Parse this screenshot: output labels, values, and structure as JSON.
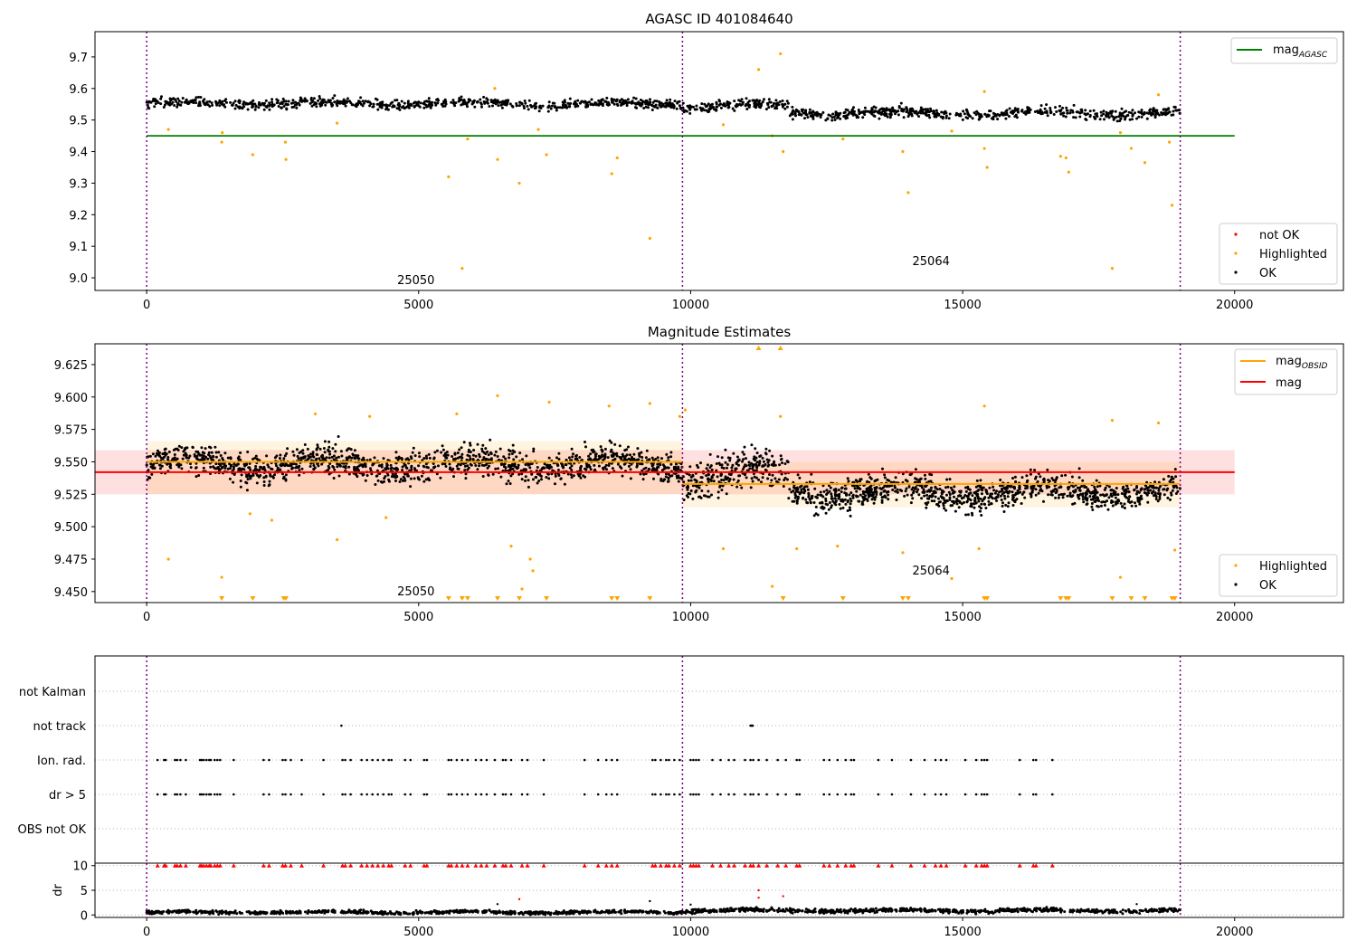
{
  "chart_data": [
    {
      "type": "scatter",
      "title": "AGASC ID 401084640",
      "xlim": [
        -950,
        22000
      ],
      "ylim": [
        8.96,
        9.78
      ],
      "xticks": [
        0,
        5000,
        10000,
        15000,
        20000
      ],
      "yticks": [
        9.0,
        9.1,
        9.2,
        9.3,
        9.4,
        9.5,
        9.6,
        9.7
      ],
      "obsid_boundaries": [
        0,
        9850,
        19000
      ],
      "obsid_labels": [
        {
          "text": "25050",
          "x": 4950,
          "y": 8.98
        },
        {
          "text": "25064",
          "x": 14420,
          "y": 9.04
        }
      ],
      "reference_lines": [
        {
          "name": "mag_AGASC",
          "color": "#008000",
          "x": [
            0,
            20000
          ],
          "y": 9.45
        }
      ],
      "ok_band": [
        {
          "x": [
            0,
            9850
          ],
          "center": 9.552,
          "spread": 0.018
        },
        {
          "x": [
            9850,
            11800
          ],
          "center": 9.545,
          "spread": 0.02
        },
        {
          "x": [
            11800,
            19000
          ],
          "center": 9.522,
          "spread": 0.02
        }
      ],
      "highlighted_points": [
        {
          "x": 1380,
          "y": 9.43
        },
        {
          "x": 1390,
          "y": 9.46
        },
        {
          "x": 1950,
          "y": 9.39
        },
        {
          "x": 2550,
          "y": 9.43
        },
        {
          "x": 2560,
          "y": 9.375
        },
        {
          "x": 5550,
          "y": 9.32
        },
        {
          "x": 5800,
          "y": 9.03
        },
        {
          "x": 5900,
          "y": 9.44
        },
        {
          "x": 6450,
          "y": 9.375
        },
        {
          "x": 6850,
          "y": 9.3
        },
        {
          "x": 7350,
          "y": 9.39
        },
        {
          "x": 8550,
          "y": 9.33
        },
        {
          "x": 8650,
          "y": 9.38
        },
        {
          "x": 9250,
          "y": 9.125
        },
        {
          "x": 11250,
          "y": 9.66
        },
        {
          "x": 11650,
          "y": 9.71
        },
        {
          "x": 11700,
          "y": 9.4
        },
        {
          "x": 12800,
          "y": 9.44
        },
        {
          "x": 13900,
          "y": 9.4
        },
        {
          "x": 14000,
          "y": 9.27
        },
        {
          "x": 15400,
          "y": 9.41
        },
        {
          "x": 15450,
          "y": 9.35
        },
        {
          "x": 15400,
          "y": 9.59
        },
        {
          "x": 16800,
          "y": 9.385
        },
        {
          "x": 16900,
          "y": 9.38
        },
        {
          "x": 16950,
          "y": 9.335
        },
        {
          "x": 17750,
          "y": 9.03
        },
        {
          "x": 18100,
          "y": 9.41
        },
        {
          "x": 18350,
          "y": 9.365
        },
        {
          "x": 18850,
          "y": 9.23
        },
        {
          "x": 18800,
          "y": 9.43
        },
        {
          "x": 18600,
          "y": 9.58
        },
        {
          "x": 400,
          "y": 9.47
        },
        {
          "x": 3500,
          "y": 9.49
        },
        {
          "x": 7200,
          "y": 9.47
        },
        {
          "x": 10600,
          "y": 9.485
        },
        {
          "x": 14800,
          "y": 9.465
        },
        {
          "x": 17900,
          "y": 9.46
        },
        {
          "x": 6400,
          "y": 9.6
        },
        {
          "x": 11500,
          "y": 9.45
        }
      ],
      "legends": [
        {
          "position": "upper-right",
          "entries": [
            {
              "label_main": "mag",
              "label_sub": "AGASC",
              "marker": "line",
              "color": "#008000"
            }
          ]
        },
        {
          "position": "lower-right",
          "entries": [
            {
              "label_main": "not OK",
              "label_sub": "",
              "marker": "dot",
              "color": "#ff0000"
            },
            {
              "label_main": "Highlighted",
              "label_sub": "",
              "marker": "dot",
              "color": "#ffa500"
            },
            {
              "label_main": "OK",
              "label_sub": "",
              "marker": "dot",
              "color": "#000000"
            }
          ]
        }
      ]
    },
    {
      "type": "scatter",
      "title": "Magnitude Estimates",
      "xlim": [
        -950,
        22000
      ],
      "ylim": [
        9.4415,
        9.641
      ],
      "xticks": [
        0,
        5000,
        10000,
        15000,
        20000
      ],
      "yticks": [
        9.45,
        9.475,
        9.5,
        9.525,
        9.55,
        9.575,
        9.6,
        9.625
      ],
      "obsid_boundaries": [
        0,
        9850,
        19000
      ],
      "obsid_labels": [
        {
          "text": "25050",
          "x": 4950,
          "y": 9.447
        },
        {
          "text": "25064",
          "x": 14420,
          "y": 9.463
        }
      ],
      "reference_lines": [
        {
          "name": "mag",
          "color": "#ff0000",
          "x": [
            -950,
            20000
          ],
          "y": 9.542
        },
        {
          "name": "mag_OBSID 25050",
          "color": "#ffa500",
          "x": [
            0,
            9850
          ],
          "y": 9.55
        },
        {
          "name": "mag_OBSID 25064",
          "color": "#ffa500",
          "x": [
            9850,
            19000
          ],
          "y": 9.533
        }
      ],
      "bands": [
        {
          "color": "#ff0000",
          "x": [
            -950,
            20000
          ],
          "y": [
            9.525,
            9.559
          ]
        },
        {
          "color": "#ffa500",
          "x": [
            0,
            9850
          ],
          "y": [
            9.525,
            9.566
          ]
        },
        {
          "color": "#ffa500",
          "x": [
            9850,
            19000
          ],
          "y": [
            9.515,
            9.55
          ]
        }
      ],
      "ok_band": [
        {
          "x": [
            0,
            9850
          ],
          "center": 9.548,
          "spread": 0.014
        },
        {
          "x": [
            9850,
            11800
          ],
          "center": 9.54,
          "spread": 0.018
        },
        {
          "x": [
            11800,
            19000
          ],
          "center": 9.527,
          "spread": 0.014
        }
      ],
      "highlighted_points": [
        {
          "x": 400,
          "y": 9.475
        },
        {
          "x": 1380,
          "y": 9.461
        },
        {
          "x": 3500,
          "y": 9.49
        },
        {
          "x": 6450,
          "y": 9.601
        },
        {
          "x": 6700,
          "y": 9.485
        },
        {
          "x": 7050,
          "y": 9.475
        },
        {
          "x": 7100,
          "y": 9.466
        },
        {
          "x": 6900,
          "y": 9.452
        },
        {
          "x": 7400,
          "y": 9.596
        },
        {
          "x": 8500,
          "y": 9.593
        },
        {
          "x": 9250,
          "y": 9.595
        },
        {
          "x": 9800,
          "y": 9.585
        },
        {
          "x": 9900,
          "y": 9.59
        },
        {
          "x": 10600,
          "y": 9.483
        },
        {
          "x": 11500,
          "y": 9.454
        },
        {
          "x": 11650,
          "y": 9.585
        },
        {
          "x": 11950,
          "y": 9.483
        },
        {
          "x": 12700,
          "y": 9.485
        },
        {
          "x": 13900,
          "y": 9.48
        },
        {
          "x": 14800,
          "y": 9.46
        },
        {
          "x": 15400,
          "y": 9.593
        },
        {
          "x": 15300,
          "y": 9.483
        },
        {
          "x": 17750,
          "y": 9.582
        },
        {
          "x": 17900,
          "y": 9.461
        },
        {
          "x": 18600,
          "y": 9.58
        },
        {
          "x": 18900,
          "y": 9.482
        },
        {
          "x": 1900,
          "y": 9.51
        },
        {
          "x": 2300,
          "y": 9.505
        },
        {
          "x": 4400,
          "y": 9.507
        },
        {
          "x": 3100,
          "y": 9.587
        },
        {
          "x": 4100,
          "y": 9.585
        },
        {
          "x": 5700,
          "y": 9.587
        }
      ],
      "clipped_low_x": [
        1380,
        1950,
        2520,
        2560,
        5550,
        5800,
        5900,
        6450,
        6850,
        7350,
        8550,
        8650,
        9250,
        11700,
        12800,
        13900,
        14000,
        15400,
        15450,
        16800,
        16900,
        16950,
        17750,
        18100,
        18350,
        18850,
        18900
      ],
      "clipped_high_x": [
        11250,
        11650
      ],
      "legends": [
        {
          "position": "upper-right",
          "entries": [
            {
              "label_main": "mag",
              "label_sub": "OBSID",
              "marker": "line",
              "color": "#ffa500"
            },
            {
              "label_main": "mag",
              "label_sub": "",
              "marker": "line",
              "color": "#ff0000"
            }
          ]
        },
        {
          "position": "lower-right",
          "entries": [
            {
              "label_main": "Highlighted",
              "label_sub": "",
              "marker": "dot",
              "color": "#ffa500"
            },
            {
              "label_main": "OK",
              "label_sub": "",
              "marker": "dot",
              "color": "#000000"
            }
          ]
        }
      ]
    },
    {
      "type": "scatter",
      "xlim": [
        -950,
        22000
      ],
      "categories": [
        "not Kalman",
        "not track",
        "Ion. rad.",
        "dr > 5",
        "OBS not OK"
      ],
      "obsid_boundaries": [
        0,
        9850,
        19000
      ],
      "flag_x": [
        {
          "category": "not track",
          "x": [
            3580,
            11100,
            11120,
            11140
          ]
        },
        {
          "category": "Ion. rad.",
          "x": [
            200,
            320,
            350,
            520,
            560,
            620,
            720,
            980,
            1010,
            1050,
            1100,
            1150,
            1180,
            1250,
            1300,
            1350,
            1600,
            2150,
            2250,
            2500,
            2550,
            2650,
            2850,
            3250,
            3600,
            3650,
            3750,
            3950,
            4050,
            4150,
            4250,
            4350,
            4450,
            4500,
            4750,
            4850,
            5100,
            5150,
            5550,
            5600,
            5700,
            5800,
            5900,
            6050,
            6150,
            6250,
            6400,
            6550,
            6600,
            6700,
            6900,
            7000,
            7300,
            8050,
            8300,
            8450,
            8550,
            8650,
            9300,
            9350,
            9450,
            9550,
            9600,
            9700,
            9800,
            10000,
            10050,
            10100,
            10150,
            10400,
            10550,
            10700,
            10800,
            11000,
            11100,
            11150,
            11250,
            11400,
            11600,
            11750,
            11950,
            12000,
            12450,
            12550,
            12700,
            12850,
            12950,
            13000,
            13450,
            13700,
            14050,
            14300,
            14500,
            14600,
            14700,
            15050,
            15250,
            15350,
            15400,
            15450,
            16050,
            16300,
            16350,
            16650
          ]
        },
        {
          "category": "dr > 5",
          "x": [
            200,
            320,
            350,
            520,
            560,
            620,
            720,
            980,
            1010,
            1050,
            1100,
            1150,
            1180,
            1250,
            1300,
            1350,
            1600,
            2150,
            2250,
            2500,
            2550,
            2650,
            2850,
            3250,
            3600,
            3650,
            3750,
            3950,
            4050,
            4150,
            4250,
            4350,
            4450,
            4500,
            4750,
            4850,
            5100,
            5150,
            5550,
            5600,
            5700,
            5800,
            5900,
            6050,
            6150,
            6250,
            6400,
            6550,
            6600,
            6700,
            6900,
            7000,
            7300,
            8050,
            8300,
            8450,
            8550,
            8650,
            9300,
            9350,
            9450,
            9550,
            9600,
            9700,
            9800,
            10000,
            10050,
            10100,
            10150,
            10400,
            10550,
            10700,
            10800,
            11000,
            11100,
            11150,
            11250,
            11400,
            11600,
            11750,
            11950,
            12000,
            12450,
            12550,
            12700,
            12850,
            12950,
            13000,
            13450,
            13700,
            14050,
            14300,
            14500,
            14600,
            14700,
            15050,
            15250,
            15350,
            15400,
            15450,
            16050,
            16300,
            16350,
            16650
          ]
        }
      ]
    },
    {
      "type": "scatter",
      "ylabel": "dr",
      "xlim": [
        -950,
        22000
      ],
      "ylim": [
        -0.5,
        10.5
      ],
      "xticks": [
        0,
        5000,
        10000,
        15000,
        20000
      ],
      "yticks": [
        0,
        5,
        10
      ],
      "obsid_boundaries": [
        0,
        9850,
        19000
      ],
      "ok_band": [
        {
          "x": [
            0,
            9850
          ],
          "center": 0.55,
          "spread": 0.4
        },
        {
          "x": [
            9850,
            19000
          ],
          "center": 0.9,
          "spread": 0.5
        }
      ],
      "clipped_high_x": [
        200,
        320,
        350,
        520,
        560,
        620,
        720,
        980,
        1010,
        1050,
        1100,
        1150,
        1180,
        1250,
        1300,
        1350,
        1600,
        2150,
        2250,
        2500,
        2550,
        2650,
        2850,
        3250,
        3600,
        3650,
        3750,
        3950,
        4050,
        4150,
        4250,
        4350,
        4450,
        4500,
        4750,
        4850,
        5100,
        5150,
        5550,
        5600,
        5700,
        5800,
        5900,
        6050,
        6150,
        6250,
        6400,
        6550,
        6600,
        6700,
        6900,
        7000,
        7300,
        8050,
        8300,
        8450,
        8550,
        8650,
        9300,
        9350,
        9450,
        9550,
        9600,
        9700,
        9800,
        10000,
        10050,
        10100,
        10150,
        10400,
        10550,
        10700,
        10800,
        11000,
        11100,
        11150,
        11250,
        11400,
        11600,
        11750,
        11950,
        12000,
        12450,
        12550,
        12700,
        12850,
        12950,
        13000,
        13450,
        13700,
        14050,
        14300,
        14500,
        14600,
        14700,
        15050,
        15250,
        15350,
        15400,
        15450,
        16050,
        16300,
        16350,
        16650
      ],
      "red_points": [
        {
          "x": 6850,
          "y": 3.2
        },
        {
          "x": 11250,
          "y": 5.0
        },
        {
          "x": 11250,
          "y": 3.5
        },
        {
          "x": 11700,
          "y": 3.8
        }
      ],
      "extra_points": [
        {
          "x": 6450,
          "y": 2.2
        },
        {
          "x": 9250,
          "y": 2.8
        },
        {
          "x": 10000,
          "y": 2.1
        },
        {
          "x": 18200,
          "y": 2.2
        }
      ]
    }
  ]
}
